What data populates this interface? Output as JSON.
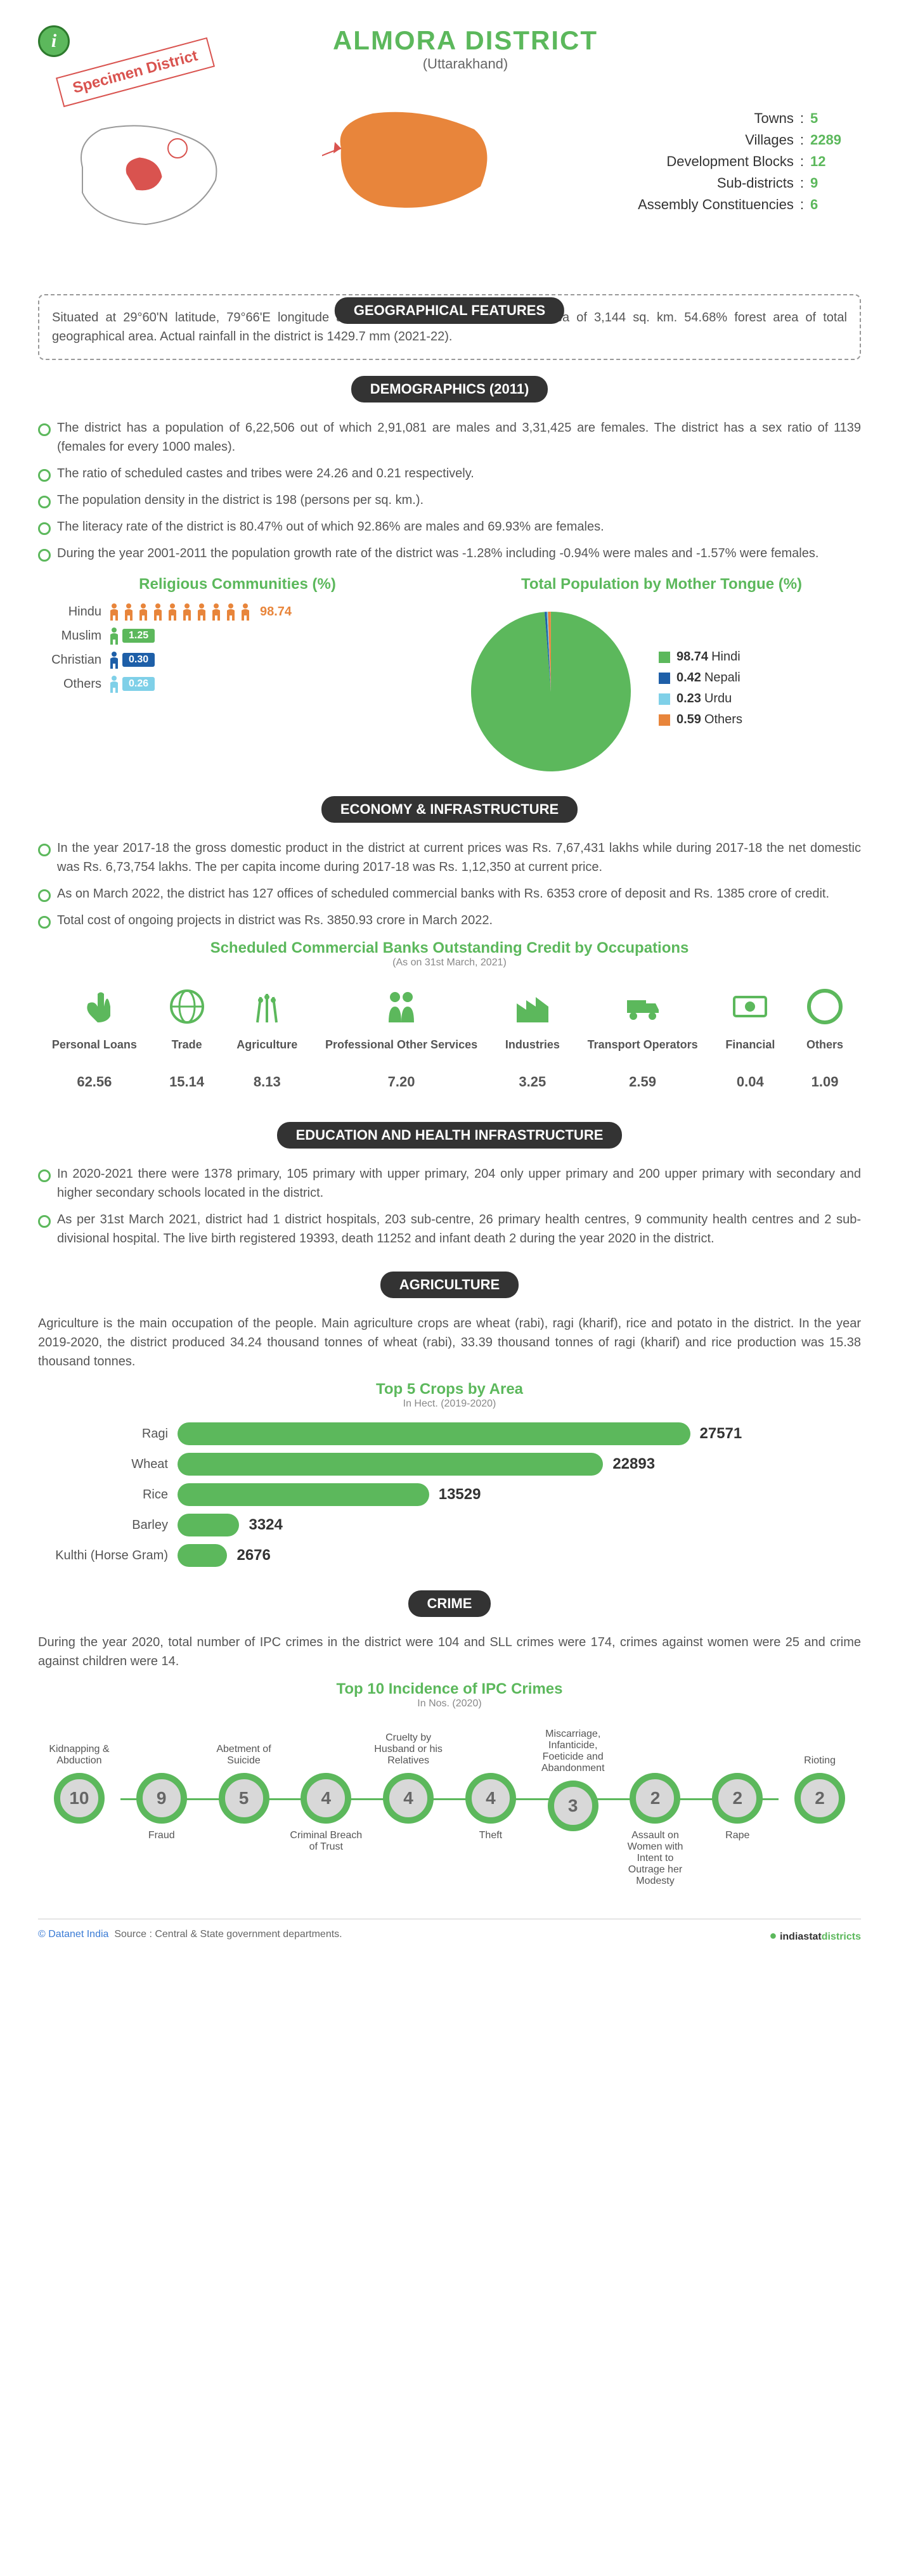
{
  "header": {
    "title": "ALMORA DISTRICT",
    "subtitle": "(Uttarakhand)",
    "specimen": "Specimen District"
  },
  "colors": {
    "green": "#5cb85c",
    "orange": "#e8853b",
    "blue": "#1e5fa8",
    "lightblue": "#7fd0e8",
    "red": "#d9534f",
    "dark": "#333333",
    "grey": "#999999"
  },
  "overview": [
    {
      "label": "Towns",
      "value": "5"
    },
    {
      "label": "Villages",
      "value": "2289"
    },
    {
      "label": "Development Blocks",
      "value": "12"
    },
    {
      "label": "Sub-districts",
      "value": "9"
    },
    {
      "label": "Assembly Constituencies",
      "value": "6"
    }
  ],
  "geo": {
    "heading": "GEOGRAPHICAL FEATURES",
    "text": "Situated at 29°60'N latitude, 79°66'E longitude and 1861m altitude. Geographical area of 3,144 sq. km. 54.68% forest area of total geographical area. Actual rainfall in the district is 1429.7 mm (2021-22)."
  },
  "demographics": {
    "heading": "DEMOGRAPHICS (2011)",
    "bullets": [
      "The district has a population of 6,22,506 out of which 2,91,081 are males and 3,31,425 are females. The district has a sex ratio of 1139 (females for every 1000 males).",
      "The ratio of scheduled castes and tribes were 24.26 and 0.21 respectively.",
      "The population density in the district is 198 (persons per sq. km.).",
      "The literacy rate of the district is 80.47% out of which 92.86% are males and 69.93% are females.",
      "During the year 2001-2011 the population growth rate of the district was -1.28% including -0.94% were males and -1.57% were females."
    ],
    "religion": {
      "title": "Religious Communities (%)",
      "rows": [
        {
          "label": "Hindu",
          "value": "98.74",
          "color": "#e8853b",
          "icons": 10
        },
        {
          "label": "Muslim",
          "value": "1.25",
          "color": "#5cb85c",
          "icons": 1
        },
        {
          "label": "Christian",
          "value": "0.30",
          "color": "#1e5fa8",
          "icons": 1
        },
        {
          "label": "Others",
          "value": "0.26",
          "color": "#7fd0e8",
          "icons": 1
        }
      ]
    },
    "mothertongue": {
      "title": "Total Population by Mother Tongue (%)",
      "items": [
        {
          "label": "Hindi",
          "value": "98.74",
          "color": "#5cb85c"
        },
        {
          "label": "Nepali",
          "value": "0.42",
          "color": "#1e5fa8"
        },
        {
          "label": "Urdu",
          "value": "0.23",
          "color": "#7fd0e8"
        },
        {
          "label": "Others",
          "value": "0.59",
          "color": "#e8853b"
        }
      ]
    }
  },
  "economy": {
    "heading": "ECONOMY & INFRASTRUCTURE",
    "bullets": [
      "In the year 2017-18 the gross domestic product in the district at current prices was Rs. 7,67,431 lakhs while during 2017-18 the net domestic was Rs. 6,73,754 lakhs. The per capita income during 2017-18 was Rs. 1,12,350 at current price.",
      "As on March 2022, the district has 127 offices of scheduled commercial banks with Rs. 6353 crore of deposit and Rs. 1385 crore of credit.",
      "Total cost of ongoing projects in district was Rs. 3850.93 crore in March 2022."
    ],
    "credit_title": "Scheduled Commercial Banks Outstanding Credit by Occupations",
    "credit_caption": "(As on 31st March, 2021)",
    "credit_items": [
      {
        "label": "Personal Loans",
        "value": "62.56",
        "icon": "hand"
      },
      {
        "label": "Trade",
        "value": "15.14",
        "icon": "globe"
      },
      {
        "label": "Agriculture",
        "value": "8.13",
        "icon": "wheat"
      },
      {
        "label": "Professional Other Services",
        "value": "7.20",
        "icon": "people"
      },
      {
        "label": "Industries",
        "value": "3.25",
        "icon": "factory"
      },
      {
        "label": "Transport Operators",
        "value": "2.59",
        "icon": "truck"
      },
      {
        "label": "Financial",
        "value": "0.04",
        "icon": "money"
      },
      {
        "label": "Others",
        "value": "1.09",
        "icon": "circle"
      }
    ]
  },
  "education": {
    "heading": "EDUCATION AND HEALTH INFRASTRUCTURE",
    "bullets": [
      "In 2020-2021 there were 1378 primary, 105 primary with upper primary, 204 only upper primary and 200 upper primary with secondary and higher secondary schools located in the district.",
      "As per 31st March 2021, district had 1 district hospitals, 203 sub-centre, 26 primary health centres, 9 community health centres and 2 sub-divisional hospital. The live birth registered 19393, death 11252 and infant death 2 during the year 2020 in the district."
    ]
  },
  "agriculture": {
    "heading": "AGRICULTURE",
    "text": "Agriculture is the main occupation of the people. Main agriculture crops are wheat (rabi), ragi (kharif), rice and potato in the district. In the year 2019-2020, the district produced 34.24 thousand tonnes of wheat (rabi), 33.39 thousand tonnes of ragi (kharif) and rice production was 15.38 thousand tonnes.",
    "crops_title": "Top 5 Crops by Area",
    "crops_caption": "In Hect. (2019-2020)",
    "crops": [
      {
        "label": "Ragi",
        "value": 27571
      },
      {
        "label": "Wheat",
        "value": 22893
      },
      {
        "label": "Rice",
        "value": 13529
      },
      {
        "label": "Barley",
        "value": 3324
      },
      {
        "label": "Kulthi (Horse Gram)",
        "value": 2676
      }
    ],
    "crops_max": 27571
  },
  "crime": {
    "heading": "CRIME",
    "text": "During the year 2020, total number of IPC crimes in the district were 104 and SLL crimes were 174, crimes against women were 25 and crime against children were 14.",
    "ipc_title": "Top 10 Incidence of IPC Crimes",
    "ipc_caption": "In Nos. (2020)",
    "items": [
      {
        "top": "Kidnapping & Abduction",
        "bottom": "",
        "value": "10"
      },
      {
        "top": "",
        "bottom": "Fraud",
        "value": "9"
      },
      {
        "top": "Abetment of Suicide",
        "bottom": "",
        "value": "5"
      },
      {
        "top": "",
        "bottom": "Criminal Breach of Trust",
        "value": "4"
      },
      {
        "top": "Cruelty by Husband or his Relatives",
        "bottom": "",
        "value": "4"
      },
      {
        "top": "",
        "bottom": "Theft",
        "value": "4"
      },
      {
        "top": "Miscarriage, Infanticide, Foeticide and Abandonment",
        "bottom": "",
        "value": "3"
      },
      {
        "top": "",
        "bottom": "Assault on Women with Intent to Outrage her Modesty",
        "value": "2"
      },
      {
        "top": "",
        "bottom": "Rape",
        "value": "2"
      },
      {
        "top": "Rioting",
        "bottom": "",
        "value": "2"
      }
    ]
  },
  "footer": {
    "copyright": "© Datanet India",
    "source": "Source : Central & State government departments.",
    "brand1": "indiastat",
    "brand2": "districts"
  }
}
